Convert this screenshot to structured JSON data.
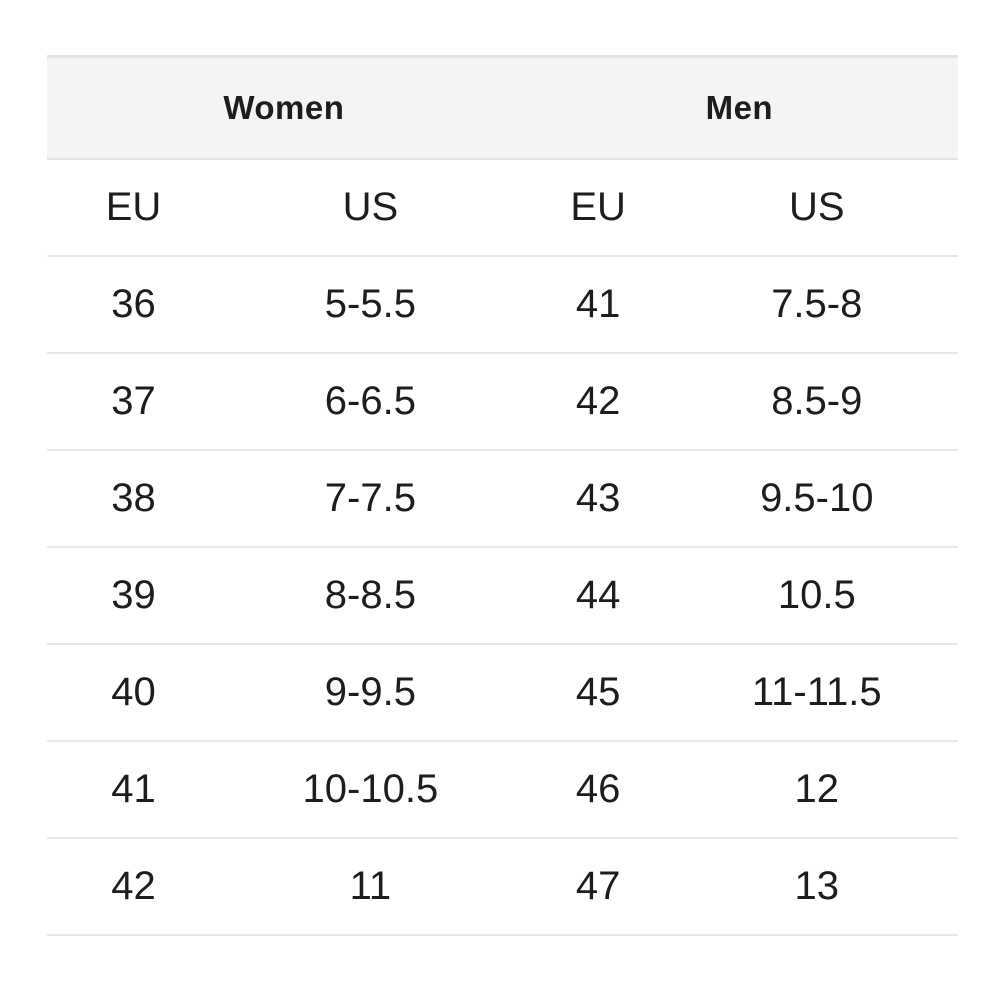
{
  "size_chart": {
    "groups": [
      {
        "label": "Women"
      },
      {
        "label": "Men"
      }
    ],
    "column_headers": [
      "EU",
      "US",
      "EU",
      "US"
    ],
    "rows": [
      [
        "36",
        "5-5.5",
        "41",
        "7.5-8"
      ],
      [
        "37",
        "6-6.5",
        "42",
        "8.5-9"
      ],
      [
        "38",
        "7-7.5",
        "43",
        "9.5-10"
      ],
      [
        "39",
        "8-8.5",
        "44",
        "10.5"
      ],
      [
        "40",
        "9-9.5",
        "45",
        "11-11.5"
      ],
      [
        "41",
        "10-10.5",
        "46",
        "12"
      ],
      [
        "42",
        "11",
        "47",
        "13"
      ]
    ]
  },
  "colors": {
    "group_header_background": "#f4f4f4",
    "divider": "#e7e7e7",
    "text": "#1d1d1d",
    "page_background": "#ffffff"
  }
}
